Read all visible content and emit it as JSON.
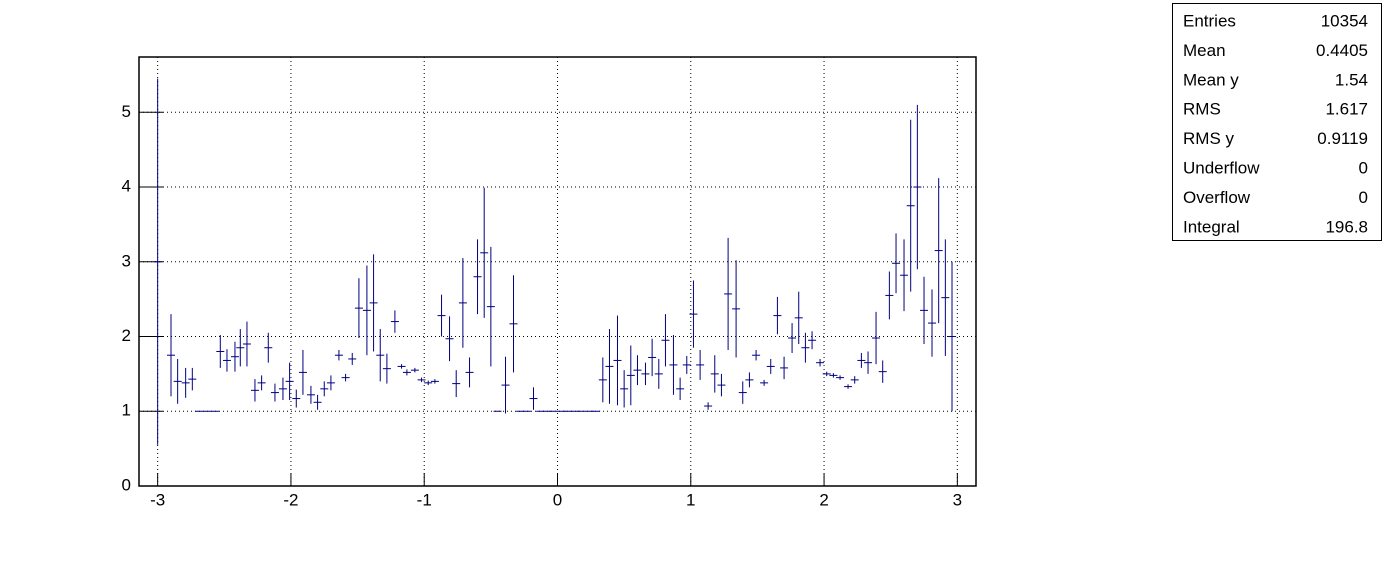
{
  "chart_data": {
    "type": "profile",
    "x": [
      -3.0,
      -2.9,
      -2.85,
      -2.79,
      -2.74,
      -2.69,
      -2.63,
      -2.57,
      -2.53,
      -2.48,
      -2.42,
      -2.38,
      -2.33,
      -2.27,
      -2.22,
      -2.17,
      -2.12,
      -2.06,
      -2.01,
      -1.96,
      -1.91,
      -1.85,
      -1.8,
      -1.75,
      -1.7,
      -1.64,
      -1.59,
      -1.54,
      -1.49,
      -1.43,
      -1.38,
      -1.33,
      -1.28,
      -1.22,
      -1.17,
      -1.13,
      -1.07,
      -1.02,
      -0.97,
      -0.92,
      -0.87,
      -0.81,
      -0.76,
      -0.71,
      -0.66,
      -0.6,
      -0.55,
      -0.5,
      -0.45,
      -0.39,
      -0.33,
      -0.28,
      -0.23,
      -0.18,
      -0.13,
      -0.08,
      -0.03,
      0.03,
      0.08,
      0.13,
      0.18,
      0.24,
      0.29,
      0.34,
      0.39,
      0.45,
      0.5,
      0.55,
      0.6,
      0.66,
      0.71,
      0.76,
      0.81,
      0.87,
      0.92,
      0.97,
      1.02,
      1.07,
      1.13,
      1.18,
      1.23,
      1.28,
      1.34,
      1.39,
      1.44,
      1.49,
      1.55,
      1.6,
      1.65,
      1.7,
      1.76,
      1.81,
      1.86,
      1.91,
      1.97,
      2.02,
      2.07,
      2.12,
      2.18,
      2.23,
      2.28,
      2.33,
      2.39,
      2.44,
      2.49,
      2.54,
      2.6,
      2.65,
      2.7,
      2.75,
      2.81,
      2.86,
      2.91,
      2.96
    ],
    "values": [
      3.0,
      1.75,
      1.4,
      1.38,
      1.43,
      1,
      1,
      1,
      1.8,
      1.68,
      1.73,
      1.85,
      1.9,
      1.28,
      1.38,
      1.85,
      1.25,
      1.3,
      1.4,
      1.17,
      1.52,
      1.22,
      1.12,
      1.3,
      1.38,
      1.75,
      1.45,
      1.7,
      2.38,
      2.35,
      2.45,
      1.75,
      1.57,
      2.2,
      1.6,
      1.52,
      1.55,
      1.42,
      1.38,
      1.4,
      2.28,
      1.97,
      1.37,
      2.45,
      1.52,
      2.8,
      3.12,
      2.4,
      1,
      1.35,
      2.17,
      1,
      1,
      1.17,
      1,
      1,
      1,
      1,
      1,
      1,
      1,
      1,
      1,
      1.42,
      1.6,
      1.68,
      1.3,
      1.48,
      1.55,
      1.5,
      1.72,
      1.5,
      1.95,
      1.62,
      1.3,
      1.62,
      2.3,
      1.62,
      1.07,
      1.5,
      1.35,
      2.57,
      2.37,
      1.25,
      1.42,
      1.75,
      1.38,
      1.6,
      2.28,
      1.58,
      1.98,
      2.25,
      1.85,
      1.95,
      1.65,
      1.5,
      1.48,
      1.45,
      1.33,
      1.42,
      1.68,
      1.65,
      1.98,
      1.53,
      2.55,
      2.98,
      2.82,
      3.75,
      4.0,
      2.35,
      2.18,
      3.15,
      2.52,
      2.0
    ],
    "errors": [
      2.45,
      0.55,
      0.3,
      0.2,
      0.15,
      0,
      0,
      0,
      0.22,
      0.15,
      0.2,
      0.25,
      0.3,
      0.15,
      0.1,
      0.2,
      0.12,
      0.15,
      0.25,
      0.12,
      0.3,
      0.12,
      0.1,
      0.1,
      0.1,
      0.07,
      0.05,
      0.08,
      0.4,
      0.6,
      0.65,
      0.35,
      0.2,
      0.15,
      0.03,
      0.04,
      0.03,
      0.03,
      0.03,
      0.03,
      0.28,
      0.3,
      0.18,
      0.6,
      0.2,
      0.5,
      0.87,
      0.8,
      0,
      0.38,
      0.65,
      0,
      0,
      0.15,
      0,
      0,
      0,
      0,
      0,
      0,
      0,
      0,
      0,
      0.3,
      0.5,
      0.6,
      0.25,
      0.4,
      0.2,
      0.15,
      0.25,
      0.2,
      0.35,
      0.4,
      0.15,
      0.12,
      0.45,
      0.2,
      0.05,
      0.25,
      0.15,
      0.75,
      0.65,
      0.15,
      0.1,
      0.07,
      0.04,
      0.1,
      0.25,
      0.15,
      0.2,
      0.35,
      0.2,
      0.12,
      0.05,
      0.03,
      0.03,
      0.03,
      0.03,
      0.05,
      0.1,
      0.15,
      0.35,
      0.15,
      0.32,
      0.4,
      0.48,
      1.15,
      1.1,
      0.45,
      0.45,
      0.97,
      0.78,
      1.0
    ],
    "color": "#000080",
    "xlim": [
      -3.14,
      3.14
    ],
    "xticks": [
      -3,
      -2,
      -1,
      0,
      1,
      2,
      3
    ],
    "ylim": [
      0,
      5.74
    ],
    "yticks": [
      0,
      1,
      2,
      3,
      4,
      5
    ],
    "grid": true,
    "stats": {
      "labels": [
        "Entries",
        "Mean",
        "Mean y",
        "RMS",
        "RMS y",
        "Underflow",
        "Overflow",
        "Integral"
      ],
      "values": [
        "10354",
        "0.4405",
        "1.54",
        "1.617",
        "0.9119",
        "0",
        "0",
        "196.8"
      ]
    }
  }
}
